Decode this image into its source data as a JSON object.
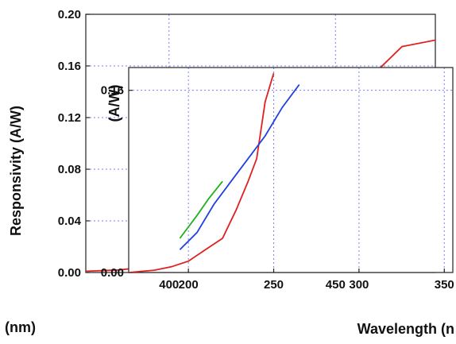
{
  "chart_data": [
    {
      "type": "line",
      "panel": "main",
      "title": "",
      "ylabel": "Responsivity (A/W)",
      "xlabel": "(nm)",
      "ylim": [
        0,
        0.2
      ],
      "xlim": [
        375,
        480
      ],
      "y_ticks": [
        "0.00",
        "0.04",
        "0.08",
        "0.12",
        "0.16",
        "0.20"
      ],
      "x_ticks": [
        "400",
        "450"
      ],
      "grid": true,
      "series": [
        {
          "color": "#e02020",
          "x": [
            375,
            385,
            392,
            396,
            400,
            403,
            406,
            410,
            418,
            430,
            440,
            450,
            460,
            470,
            480
          ],
          "y": [
            0.001,
            0.002,
            0.004,
            0.007,
            0.015,
            0.025,
            0.035,
            0.05,
            0.065,
            0.085,
            0.105,
            0.125,
            0.15,
            0.175,
            0.18
          ]
        }
      ]
    },
    {
      "type": "line",
      "panel": "inset",
      "title": "",
      "ylabel": "(A/W)",
      "xlabel": "Wavelength (n",
      "ylim": [
        0,
        0.18
      ],
      "xlim": [
        165,
        355
      ],
      "y_ticks": [
        "0.00",
        "0.16"
      ],
      "x_ticks": [
        "200",
        "250",
        "300",
        "350"
      ],
      "grid": true,
      "series": [
        {
          "color": "#e02020",
          "x": [
            165,
            180,
            190,
            200,
            210,
            220,
            228,
            235,
            240,
            245,
            250
          ],
          "y": [
            0.0,
            0.002,
            0.005,
            0.01,
            0.02,
            0.03,
            0.055,
            0.08,
            0.1,
            0.15,
            0.175
          ]
        },
        {
          "color": "#2040e0",
          "x": [
            195,
            205,
            215,
            225,
            235,
            245,
            255,
            265
          ],
          "y": [
            0.02,
            0.035,
            0.06,
            0.08,
            0.1,
            0.12,
            0.145,
            0.165
          ]
        },
        {
          "color": "#20b020",
          "x": [
            195,
            205,
            212,
            220
          ],
          "y": [
            0.03,
            0.05,
            0.065,
            0.08
          ]
        }
      ]
    }
  ]
}
